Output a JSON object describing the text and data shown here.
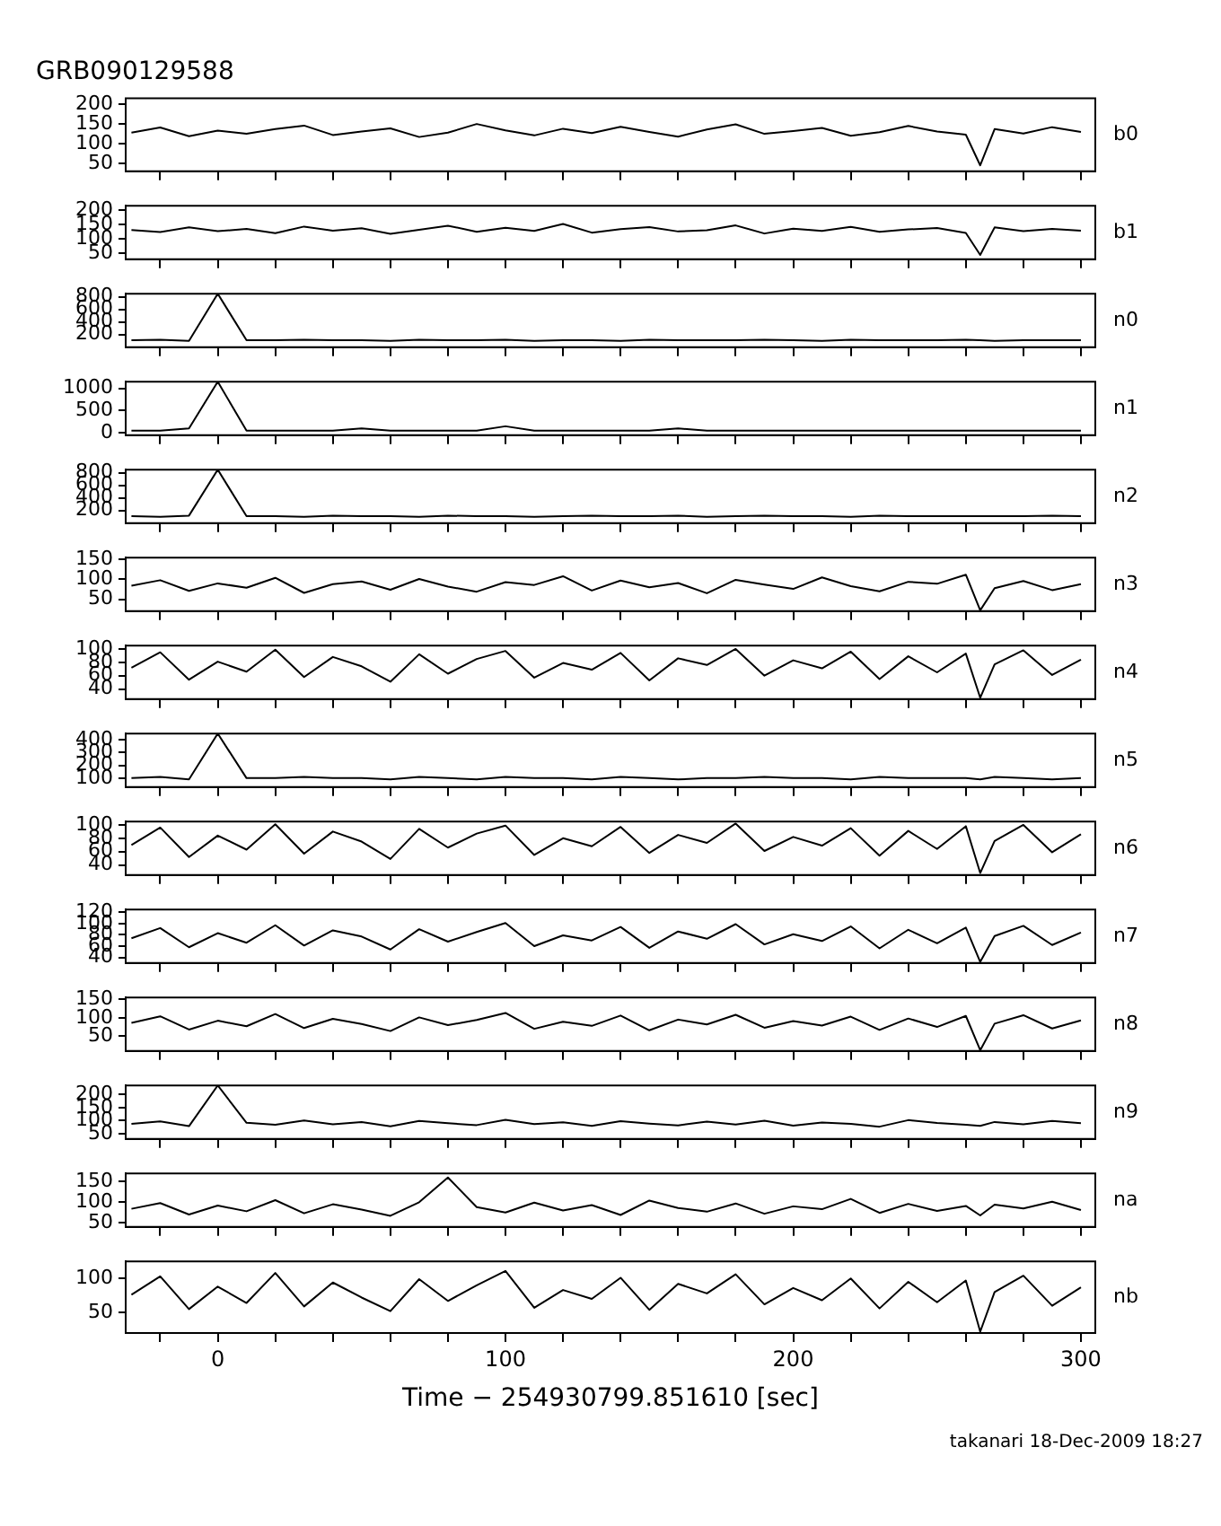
{
  "chart_data": [
    {
      "type": "line",
      "title": "GRB090129588",
      "x": [
        -30,
        -20,
        -10,
        0,
        10,
        20,
        30,
        40,
        50,
        60,
        70,
        80,
        90,
        100,
        110,
        120,
        130,
        140,
        150,
        160,
        170,
        180,
        190,
        200,
        210,
        220,
        230,
        240,
        250,
        260,
        265,
        270,
        280,
        290,
        300
      ],
      "xlim": [
        -32,
        305
      ],
      "xticks": [
        {
          "value": -20,
          "label": null
        },
        0,
        {
          "value": 20,
          "label": null
        },
        {
          "value": 40,
          "label": null
        },
        {
          "value": 60,
          "label": null
        },
        {
          "value": 80,
          "label": null
        },
        100,
        {
          "value": 120,
          "label": null
        },
        {
          "value": 140,
          "label": null
        },
        {
          "value": 160,
          "label": null
        },
        {
          "value": 180,
          "label": null
        },
        200,
        {
          "value": 220,
          "label": null
        },
        {
          "value": 240,
          "label": null
        },
        {
          "value": 260,
          "label": null
        },
        {
          "value": 280,
          "label": null
        },
        300
      ],
      "ylim": [
        30,
        215
      ],
      "yticks": [
        50,
        100,
        150,
        200
      ],
      "tick_labels": "y",
      "marker": "none",
      "series": [
        {
          "name": "b0",
          "color": "#000000",
          "values": [
            128,
            141,
            119,
            133,
            125,
            137,
            146,
            122,
            131,
            139,
            117,
            128,
            150,
            134,
            121,
            138,
            127,
            143,
            130,
            118,
            136,
            149,
            125,
            132,
            140,
            120,
            129,
            145,
            131,
            123,
            45,
            137,
            126,
            142,
            130
          ]
        }
      ]
    },
    {
      "type": "line",
      "x": [
        -30,
        -20,
        -10,
        0,
        10,
        20,
        30,
        40,
        50,
        60,
        70,
        80,
        90,
        100,
        110,
        120,
        130,
        140,
        150,
        160,
        170,
        180,
        190,
        200,
        210,
        220,
        230,
        240,
        250,
        260,
        265,
        270,
        280,
        290,
        300
      ],
      "xlim": [
        -32,
        305
      ],
      "xticks": [
        {
          "value": -20,
          "label": null
        },
        0,
        {
          "value": 20,
          "label": null
        },
        {
          "value": 40,
          "label": null
        },
        {
          "value": 60,
          "label": null
        },
        {
          "value": 80,
          "label": null
        },
        100,
        {
          "value": 120,
          "label": null
        },
        {
          "value": 140,
          "label": null
        },
        {
          "value": 160,
          "label": null
        },
        {
          "value": 180,
          "label": null
        },
        200,
        {
          "value": 220,
          "label": null
        },
        {
          "value": 240,
          "label": null
        },
        {
          "value": 260,
          "label": null
        },
        {
          "value": 280,
          "label": null
        },
        300
      ],
      "ylim": [
        30,
        215
      ],
      "yticks": [
        50,
        100,
        150,
        200
      ],
      "tick_labels": "y",
      "marker": "none",
      "series": [
        {
          "name": "b1",
          "color": "#000000",
          "values": [
            131,
            124,
            140,
            127,
            135,
            120,
            143,
            129,
            137,
            118,
            132,
            146,
            125,
            139,
            128,
            152,
            122,
            134,
            141,
            126,
            130,
            147,
            119,
            136,
            128,
            142,
            125,
            133,
            138,
            121,
            45,
            140,
            127,
            135,
            129
          ]
        }
      ]
    },
    {
      "type": "line",
      "x": [
        -30,
        -20,
        -10,
        0,
        10,
        20,
        30,
        40,
        50,
        60,
        70,
        80,
        90,
        100,
        110,
        120,
        130,
        140,
        150,
        160,
        170,
        180,
        190,
        200,
        210,
        220,
        230,
        240,
        250,
        260,
        265,
        270,
        280,
        290,
        300
      ],
      "xlim": [
        -32,
        305
      ],
      "xticks": [
        {
          "value": -20,
          "label": null
        },
        0,
        {
          "value": 20,
          "label": null
        },
        {
          "value": 40,
          "label": null
        },
        {
          "value": 60,
          "label": null
        },
        {
          "value": 80,
          "label": null
        },
        100,
        {
          "value": 120,
          "label": null
        },
        {
          "value": 140,
          "label": null
        },
        {
          "value": 160,
          "label": null
        },
        {
          "value": 180,
          "label": null
        },
        200,
        {
          "value": 220,
          "label": null
        },
        {
          "value": 240,
          "label": null
        },
        {
          "value": 260,
          "label": null
        },
        {
          "value": 280,
          "label": null
        },
        300
      ],
      "ylim": [
        0,
        850
      ],
      "yticks": [
        200,
        400,
        600,
        800
      ],
      "tick_labels": "y",
      "marker": "none",
      "series": [
        {
          "name": "n0",
          "color": "#000000",
          "values": [
            110,
            120,
            100,
            850,
            110,
            110,
            120,
            110,
            110,
            100,
            120,
            110,
            110,
            120,
            100,
            110,
            110,
            100,
            120,
            110,
            110,
            110,
            120,
            110,
            100,
            120,
            110,
            110,
            110,
            120,
            110,
            100,
            110,
            110,
            110
          ]
        }
      ]
    },
    {
      "type": "line",
      "x": [
        -30,
        -20,
        -10,
        0,
        10,
        20,
        30,
        40,
        50,
        60,
        70,
        80,
        90,
        100,
        110,
        120,
        130,
        140,
        150,
        160,
        170,
        180,
        190,
        200,
        210,
        220,
        230,
        240,
        250,
        260,
        265,
        270,
        280,
        290,
        300
      ],
      "xlim": [
        -32,
        305
      ],
      "xticks": [
        {
          "value": -20,
          "label": null
        },
        0,
        {
          "value": 20,
          "label": null
        },
        {
          "value": 40,
          "label": null
        },
        {
          "value": 60,
          "label": null
        },
        {
          "value": 80,
          "label": null
        },
        100,
        {
          "value": 120,
          "label": null
        },
        {
          "value": 140,
          "label": null
        },
        {
          "value": 160,
          "label": null
        },
        {
          "value": 180,
          "label": null
        },
        200,
        {
          "value": 220,
          "label": null
        },
        {
          "value": 240,
          "label": null
        },
        {
          "value": 260,
          "label": null
        },
        {
          "value": 280,
          "label": null
        },
        300
      ],
      "ylim": [
        -50,
        1150
      ],
      "yticks": [
        0,
        500,
        1000
      ],
      "tick_labels": "y",
      "marker": "none",
      "series": [
        {
          "name": "n1",
          "color": "#000000",
          "values": [
            50,
            50,
            100,
            1150,
            50,
            50,
            50,
            50,
            100,
            50,
            50,
            50,
            50,
            150,
            50,
            50,
            50,
            50,
            50,
            100,
            50,
            50,
            50,
            50,
            50,
            50,
            50,
            50,
            50,
            50,
            50,
            50,
            50,
            50,
            50
          ]
        }
      ]
    },
    {
      "type": "line",
      "x": [
        -30,
        -20,
        -10,
        0,
        10,
        20,
        30,
        40,
        50,
        60,
        70,
        80,
        90,
        100,
        110,
        120,
        130,
        140,
        150,
        160,
        170,
        180,
        190,
        200,
        210,
        220,
        230,
        240,
        250,
        260,
        265,
        270,
        280,
        290,
        300
      ],
      "xlim": [
        -32,
        305
      ],
      "xticks": [
        {
          "value": -20,
          "label": null
        },
        0,
        {
          "value": 20,
          "label": null
        },
        {
          "value": 40,
          "label": null
        },
        {
          "value": 60,
          "label": null
        },
        {
          "value": 80,
          "label": null
        },
        100,
        {
          "value": 120,
          "label": null
        },
        {
          "value": 140,
          "label": null
        },
        {
          "value": 160,
          "label": null
        },
        {
          "value": 180,
          "label": null
        },
        200,
        {
          "value": 220,
          "label": null
        },
        {
          "value": 240,
          "label": null
        },
        {
          "value": 260,
          "label": null
        },
        {
          "value": 280,
          "label": null
        },
        300
      ],
      "ylim": [
        0,
        850
      ],
      "yticks": [
        200,
        400,
        600,
        800
      ],
      "tick_labels": "y",
      "marker": "none",
      "series": [
        {
          "name": "n2",
          "color": "#000000",
          "values": [
            110,
            100,
            120,
            850,
            110,
            110,
            100,
            120,
            110,
            110,
            100,
            120,
            110,
            110,
            100,
            110,
            120,
            110,
            110,
            120,
            100,
            110,
            120,
            110,
            110,
            100,
            120,
            110,
            110,
            110,
            110,
            110,
            110,
            120,
            110
          ]
        }
      ]
    },
    {
      "type": "line",
      "x": [
        -30,
        -20,
        -10,
        0,
        10,
        20,
        30,
        40,
        50,
        60,
        70,
        80,
        90,
        100,
        110,
        120,
        130,
        140,
        150,
        160,
        170,
        180,
        190,
        200,
        210,
        220,
        230,
        240,
        250,
        260,
        265,
        270,
        280,
        290,
        300
      ],
      "xlim": [
        -32,
        305
      ],
      "xticks": [
        {
          "value": -20,
          "label": null
        },
        0,
        {
          "value": 20,
          "label": null
        },
        {
          "value": 40,
          "label": null
        },
        {
          "value": 60,
          "label": null
        },
        {
          "value": 80,
          "label": null
        },
        100,
        {
          "value": 120,
          "label": null
        },
        {
          "value": 140,
          "label": null
        },
        {
          "value": 160,
          "label": null
        },
        {
          "value": 180,
          "label": null
        },
        200,
        {
          "value": 220,
          "label": null
        },
        {
          "value": 240,
          "label": null
        },
        {
          "value": 260,
          "label": null
        },
        {
          "value": 280,
          "label": null
        },
        300
      ],
      "ylim": [
        20,
        155
      ],
      "yticks": [
        50,
        100,
        150
      ],
      "tick_labels": "y",
      "marker": "none",
      "series": [
        {
          "name": "n3",
          "color": "#000000",
          "values": [
            84,
            98,
            71,
            90,
            79,
            104,
            66,
            88,
            95,
            74,
            101,
            82,
            69,
            93,
            86,
            108,
            72,
            97,
            80,
            91,
            65,
            99,
            87,
            76,
            105,
            83,
            70,
            94,
            89,
            112,
            22,
            78,
            96,
            73,
            88
          ]
        }
      ]
    },
    {
      "type": "line",
      "x": [
        -30,
        -20,
        -10,
        0,
        10,
        20,
        30,
        40,
        50,
        60,
        70,
        80,
        90,
        100,
        110,
        120,
        130,
        140,
        150,
        160,
        170,
        180,
        190,
        200,
        210,
        220,
        230,
        240,
        250,
        260,
        265,
        270,
        280,
        290,
        300
      ],
      "xlim": [
        -32,
        305
      ],
      "xticks": [
        {
          "value": -20,
          "label": null
        },
        0,
        {
          "value": 20,
          "label": null
        },
        {
          "value": 40,
          "label": null
        },
        {
          "value": 60,
          "label": null
        },
        {
          "value": 80,
          "label": null
        },
        100,
        {
          "value": 120,
          "label": null
        },
        {
          "value": 140,
          "label": null
        },
        {
          "value": 160,
          "label": null
        },
        {
          "value": 180,
          "label": null
        },
        200,
        {
          "value": 220,
          "label": null
        },
        {
          "value": 240,
          "label": null
        },
        {
          "value": 260,
          "label": null
        },
        {
          "value": 280,
          "label": null
        },
        300
      ],
      "ylim": [
        25,
        105
      ],
      "yticks": [
        40,
        60,
        80,
        100
      ],
      "tick_labels": "y",
      "marker": "none",
      "series": [
        {
          "name": "n4",
          "color": "#000000",
          "values": [
            72,
            95,
            54,
            81,
            66,
            99,
            58,
            88,
            74,
            51,
            92,
            63,
            85,
            97,
            57,
            79,
            69,
            94,
            53,
            86,
            76,
            100,
            60,
            83,
            71,
            96,
            55,
            89,
            65,
            93,
            27,
            77,
            98,
            61,
            84
          ]
        }
      ]
    },
    {
      "type": "line",
      "x": [
        -30,
        -20,
        -10,
        0,
        10,
        20,
        30,
        40,
        50,
        60,
        70,
        80,
        90,
        100,
        110,
        120,
        130,
        140,
        150,
        160,
        170,
        180,
        190,
        200,
        210,
        220,
        230,
        240,
        250,
        260,
        265,
        270,
        280,
        290,
        300
      ],
      "xlim": [
        -32,
        305
      ],
      "xticks": [
        {
          "value": -20,
          "label": null
        },
        0,
        {
          "value": 20,
          "label": null
        },
        {
          "value": 40,
          "label": null
        },
        {
          "value": 60,
          "label": null
        },
        {
          "value": 80,
          "label": null
        },
        100,
        {
          "value": 120,
          "label": null
        },
        {
          "value": 140,
          "label": null
        },
        {
          "value": 160,
          "label": null
        },
        {
          "value": 180,
          "label": null
        },
        200,
        {
          "value": 220,
          "label": null
        },
        {
          "value": 240,
          "label": null
        },
        {
          "value": 260,
          "label": null
        },
        {
          "value": 280,
          "label": null
        },
        300
      ],
      "ylim": [
        30,
        450
      ],
      "yticks": [
        100,
        200,
        300,
        400
      ],
      "tick_labels": "y",
      "marker": "none",
      "series": [
        {
          "name": "n5",
          "color": "#000000",
          "values": [
            100,
            110,
            90,
            450,
            100,
            100,
            110,
            100,
            100,
            90,
            110,
            100,
            90,
            110,
            100,
            100,
            90,
            110,
            100,
            90,
            100,
            100,
            110,
            100,
            100,
            90,
            110,
            100,
            100,
            100,
            90,
            110,
            100,
            90,
            100
          ]
        }
      ]
    },
    {
      "type": "line",
      "x": [
        -30,
        -20,
        -10,
        0,
        10,
        20,
        30,
        40,
        50,
        60,
        70,
        80,
        90,
        100,
        110,
        120,
        130,
        140,
        150,
        160,
        170,
        180,
        190,
        200,
        210,
        220,
        230,
        240,
        250,
        260,
        265,
        270,
        280,
        290,
        300
      ],
      "xlim": [
        -32,
        305
      ],
      "xticks": [
        {
          "value": -20,
          "label": null
        },
        0,
        {
          "value": 20,
          "label": null
        },
        {
          "value": 40,
          "label": null
        },
        {
          "value": 60,
          "label": null
        },
        {
          "value": 80,
          "label": null
        },
        100,
        {
          "value": 120,
          "label": null
        },
        {
          "value": 140,
          "label": null
        },
        {
          "value": 160,
          "label": null
        },
        {
          "value": 180,
          "label": null
        },
        200,
        {
          "value": 220,
          "label": null
        },
        {
          "value": 240,
          "label": null
        },
        {
          "value": 260,
          "label": null
        },
        {
          "value": 280,
          "label": null
        },
        300
      ],
      "ylim": [
        25,
        105
      ],
      "yticks": [
        40,
        60,
        80,
        100
      ],
      "tick_labels": "y",
      "marker": "none",
      "series": [
        {
          "name": "n6",
          "color": "#000000",
          "values": [
            70,
            96,
            52,
            84,
            63,
            101,
            57,
            90,
            75,
            49,
            94,
            66,
            87,
            99,
            55,
            80,
            68,
            97,
            58,
            85,
            73,
            102,
            61,
            82,
            69,
            95,
            54,
            91,
            64,
            98,
            28,
            76,
            100,
            59,
            86
          ]
        }
      ]
    },
    {
      "type": "line",
      "x": [
        -30,
        -20,
        -10,
        0,
        10,
        20,
        30,
        40,
        50,
        60,
        70,
        80,
        90,
        100,
        110,
        120,
        130,
        140,
        150,
        160,
        170,
        180,
        190,
        200,
        210,
        220,
        230,
        240,
        250,
        260,
        265,
        270,
        280,
        290,
        300
      ],
      "xlim": [
        -32,
        305
      ],
      "xticks": [
        {
          "value": -20,
          "label": null
        },
        0,
        {
          "value": 20,
          "label": null
        },
        {
          "value": 40,
          "label": null
        },
        {
          "value": 60,
          "label": null
        },
        {
          "value": 80,
          "label": null
        },
        100,
        {
          "value": 120,
          "label": null
        },
        {
          "value": 140,
          "label": null
        },
        {
          "value": 160,
          "label": null
        },
        {
          "value": 180,
          "label": null
        },
        200,
        {
          "value": 220,
          "label": null
        },
        {
          "value": 240,
          "label": null
        },
        {
          "value": 260,
          "label": null
        },
        {
          "value": 280,
          "label": null
        },
        300
      ],
      "ylim": [
        30,
        125
      ],
      "yticks": [
        40,
        60,
        80,
        100,
        120
      ],
      "tick_labels": "y",
      "marker": "none",
      "series": [
        {
          "name": "n7",
          "color": "#000000",
          "values": [
            74,
            92,
            58,
            83,
            66,
            97,
            61,
            88,
            77,
            54,
            90,
            68,
            85,
            101,
            60,
            79,
            70,
            94,
            57,
            86,
            73,
            99,
            63,
            81,
            69,
            95,
            56,
            89,
            65,
            93,
            32,
            78,
            96,
            62,
            84
          ]
        }
      ]
    },
    {
      "type": "line",
      "x": [
        -30,
        -20,
        -10,
        0,
        10,
        20,
        30,
        40,
        50,
        60,
        70,
        80,
        90,
        100,
        110,
        120,
        130,
        140,
        150,
        160,
        170,
        180,
        190,
        200,
        210,
        220,
        230,
        240,
        250,
        260,
        265,
        270,
        280,
        290,
        300
      ],
      "xlim": [
        -32,
        305
      ],
      "xticks": [
        {
          "value": -20,
          "label": null
        },
        0,
        {
          "value": 20,
          "label": null
        },
        {
          "value": 40,
          "label": null
        },
        {
          "value": 60,
          "label": null
        },
        {
          "value": 80,
          "label": null
        },
        100,
        {
          "value": 120,
          "label": null
        },
        {
          "value": 140,
          "label": null
        },
        {
          "value": 160,
          "label": null
        },
        {
          "value": 180,
          "label": null
        },
        200,
        {
          "value": 220,
          "label": null
        },
        {
          "value": 240,
          "label": null
        },
        {
          "value": 260,
          "label": null
        },
        {
          "value": 280,
          "label": null
        },
        300
      ],
      "ylim": [
        10,
        155
      ],
      "yticks": [
        50,
        100,
        150
      ],
      "tick_labels": "y",
      "marker": "none",
      "series": [
        {
          "name": "n8",
          "color": "#000000",
          "values": [
            86,
            104,
            68,
            92,
            77,
            110,
            72,
            97,
            83,
            64,
            101,
            80,
            94,
            113,
            70,
            89,
            78,
            106,
            66,
            95,
            82,
            108,
            73,
            91,
            79,
            103,
            67,
            98,
            75,
            105,
            12,
            84,
            107,
            71,
            93
          ]
        }
      ]
    },
    {
      "type": "line",
      "x": [
        -30,
        -20,
        -10,
        0,
        10,
        20,
        30,
        40,
        50,
        60,
        70,
        80,
        90,
        100,
        110,
        120,
        130,
        140,
        150,
        160,
        170,
        180,
        190,
        200,
        210,
        220,
        230,
        240,
        250,
        260,
        265,
        270,
        280,
        290,
        300
      ],
      "xlim": [
        -32,
        305
      ],
      "xticks": [
        {
          "value": -20,
          "label": null
        },
        0,
        {
          "value": 20,
          "label": null
        },
        {
          "value": 40,
          "label": null
        },
        {
          "value": 60,
          "label": null
        },
        {
          "value": 80,
          "label": null
        },
        100,
        {
          "value": 120,
          "label": null
        },
        {
          "value": 140,
          "label": null
        },
        {
          "value": 160,
          "label": null
        },
        {
          "value": 180,
          "label": null
        },
        200,
        {
          "value": 220,
          "label": null
        },
        {
          "value": 240,
          "label": null
        },
        {
          "value": 260,
          "label": null
        },
        {
          "value": 280,
          "label": null
        },
        300
      ],
      "ylim": [
        30,
        235
      ],
      "yticks": [
        50,
        100,
        150,
        200
      ],
      "tick_labels": "y",
      "marker": "none",
      "series": [
        {
          "name": "n9",
          "color": "#000000",
          "values": [
            88,
            97,
            79,
            235,
            92,
            84,
            101,
            86,
            95,
            78,
            99,
            90,
            83,
            103,
            87,
            94,
            80,
            98,
            89,
            82,
            96,
            85,
            100,
            81,
            93,
            88,
            77,
            102,
            91,
            84,
            80,
            95,
            86,
            99,
            90
          ]
        }
      ]
    },
    {
      "type": "line",
      "x": [
        -30,
        -20,
        -10,
        0,
        10,
        20,
        30,
        40,
        50,
        60,
        70,
        80,
        90,
        100,
        110,
        120,
        130,
        140,
        150,
        160,
        170,
        180,
        190,
        200,
        210,
        220,
        230,
        240,
        250,
        260,
        265,
        270,
        280,
        290,
        300
      ],
      "xlim": [
        -32,
        305
      ],
      "xticks": [
        {
          "value": -20,
          "label": null
        },
        0,
        {
          "value": 20,
          "label": null
        },
        {
          "value": 40,
          "label": null
        },
        {
          "value": 60,
          "label": null
        },
        {
          "value": 80,
          "label": null
        },
        100,
        {
          "value": 120,
          "label": null
        },
        {
          "value": 140,
          "label": null
        },
        {
          "value": 160,
          "label": null
        },
        {
          "value": 180,
          "label": null
        },
        200,
        {
          "value": 220,
          "label": null
        },
        {
          "value": 240,
          "label": null
        },
        {
          "value": 260,
          "label": null
        },
        {
          "value": 280,
          "label": null
        },
        300
      ],
      "ylim": [
        40,
        170
      ],
      "yticks": [
        50,
        100,
        150
      ],
      "tick_labels": "y",
      "marker": "none",
      "series": [
        {
          "name": "na",
          "color": "#000000",
          "values": [
            84,
            98,
            70,
            92,
            78,
            105,
            73,
            95,
            82,
            67,
            100,
            160,
            88,
            75,
            99,
            80,
            93,
            69,
            104,
            86,
            77,
            97,
            72,
            90,
            83,
            108,
            74,
            96,
            79,
            91,
            68,
            94,
            85,
            101,
            81
          ]
        }
      ]
    },
    {
      "type": "line",
      "xlabel": "Time − 254930799.851610 [sec]",
      "annotations": [
        "takanari 18-Dec-2009 18:27"
      ],
      "x": [
        -30,
        -20,
        -10,
        0,
        10,
        20,
        30,
        40,
        50,
        60,
        70,
        80,
        90,
        100,
        110,
        120,
        130,
        140,
        150,
        160,
        170,
        180,
        190,
        200,
        210,
        220,
        230,
        240,
        250,
        260,
        265,
        270,
        280,
        290,
        300
      ],
      "xlim": [
        -32,
        305
      ],
      "xticks": [
        {
          "value": -20,
          "label": null
        },
        0,
        {
          "value": 20,
          "label": null
        },
        {
          "value": 40,
          "label": null
        },
        {
          "value": 60,
          "label": null
        },
        {
          "value": 80,
          "label": null
        },
        100,
        {
          "value": 120,
          "label": null
        },
        {
          "value": 140,
          "label": null
        },
        {
          "value": 160,
          "label": null
        },
        {
          "value": 180,
          "label": null
        },
        200,
        {
          "value": 220,
          "label": null
        },
        {
          "value": 240,
          "label": null
        },
        {
          "value": 260,
          "label": null
        },
        {
          "value": 280,
          "label": null
        },
        300
      ],
      "ylim": [
        20,
        125
      ],
      "yticks": [
        50,
        100
      ],
      "marker": "none",
      "series": [
        {
          "name": "nb",
          "color": "#000000",
          "values": [
            76,
            103,
            55,
            88,
            64,
            108,
            59,
            94,
            72,
            52,
            99,
            67,
            90,
            111,
            57,
            83,
            70,
            101,
            54,
            92,
            78,
            106,
            62,
            86,
            68,
            100,
            56,
            95,
            65,
            97,
            22,
            80,
            104,
            60,
            87
          ]
        }
      ]
    }
  ]
}
